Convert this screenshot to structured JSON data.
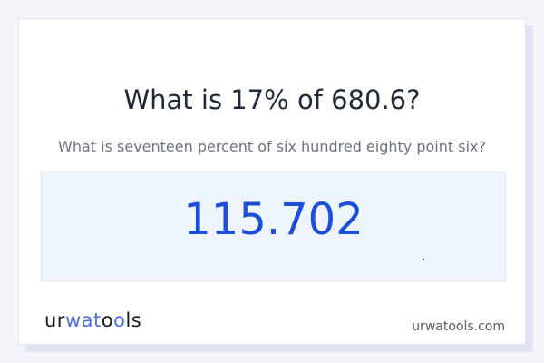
{
  "question": {
    "title": "What is 17% of 680.6?",
    "subtitle": "What is seventeen percent of six hundred eighty point six?"
  },
  "answer": {
    "value": "115.702"
  },
  "footer": {
    "logo_text": "urwatools",
    "site": "urwatools.com"
  },
  "colors": {
    "accent": "#1d4ed8",
    "answer_bg": "#eef5ff",
    "logo_accent": "#4f6ee0"
  }
}
